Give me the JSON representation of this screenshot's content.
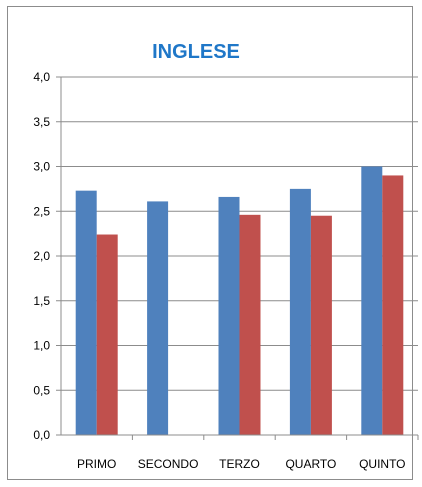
{
  "chart_data": {
    "type": "bar",
    "title": "INGLESE",
    "categories": [
      "PRIMO",
      "SECONDO",
      "TERZO",
      "QUARTO",
      "QUINTO"
    ],
    "series": [
      {
        "values": [
          2.73,
          2.61,
          2.66,
          2.75,
          3.0
        ],
        "color": "#4F81BD"
      },
      {
        "values": [
          2.24,
          null,
          2.46,
          2.45,
          2.9
        ],
        "color": "#C0504D"
      }
    ],
    "ylim": [
      0,
      4
    ],
    "yticks": [
      "0,0",
      "0,5",
      "1,0",
      "1,5",
      "2,0",
      "2,5",
      "3,0",
      "3,5",
      "4,0"
    ],
    "grid": true,
    "legend": "none",
    "title_color": "#1F77C8"
  }
}
